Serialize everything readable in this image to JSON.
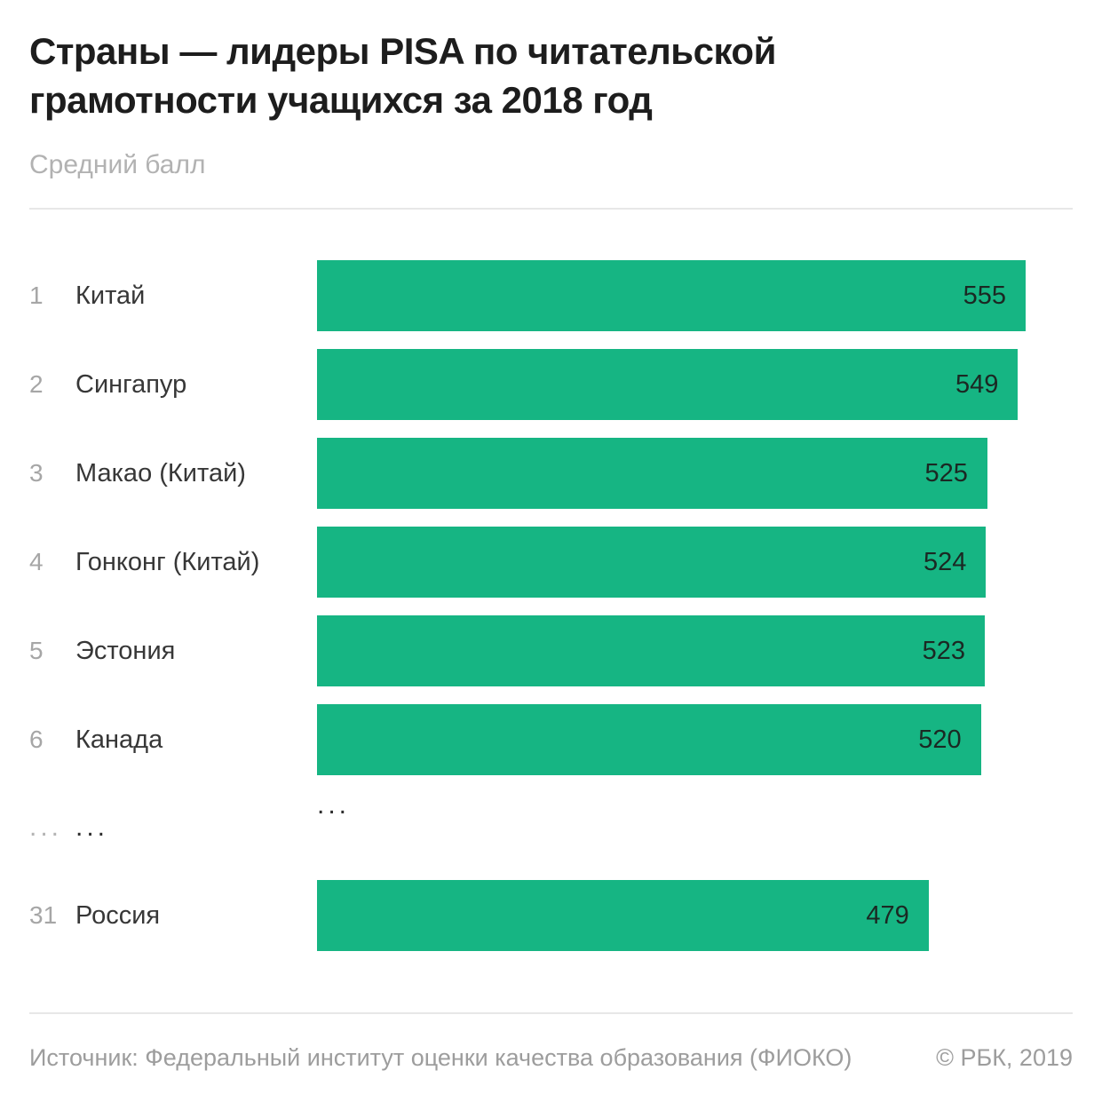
{
  "header": {
    "title": "Страны — лидеры PISA по читательской грамотности учащихся за 2018 год",
    "subtitle": "Средний балл"
  },
  "chart_data": {
    "type": "bar",
    "orientation": "horizontal",
    "title": "Страны — лидеры PISA по читательской грамотности учащихся за 2018 год",
    "value_axis_label": "Средний балл",
    "xlim": [
      0,
      555
    ],
    "grid": false,
    "legend": false,
    "rows": [
      {
        "rank": "1",
        "country": "Китай",
        "value": 555
      },
      {
        "rank": "2",
        "country": "Сингапур",
        "value": 549
      },
      {
        "rank": "3",
        "country": "Макао (Китай)",
        "value": 525
      },
      {
        "rank": "4",
        "country": "Гонконг (Китай)",
        "value": 524
      },
      {
        "rank": "5",
        "country": "Эстония",
        "value": 523
      },
      {
        "rank": "6",
        "country": "Канада",
        "value": 520
      },
      {
        "rank": "31",
        "country": "Россия",
        "value": 479
      }
    ],
    "ellipsis_row": {
      "rank": "...",
      "country": "...",
      "bar": "..."
    },
    "ellipsis_position": "between ranks 6 and 31"
  },
  "footer": {
    "source": "Источник: Федеральный институт оценки качества образования (ФИОКО)",
    "copyright": "© РБК, 2019"
  },
  "colors": {
    "bar": "#16b583",
    "title_text": "#1d1d1d",
    "subtitle_text": "#b2b2b2",
    "rank_text": "#a6a6a6",
    "country_text": "#373737",
    "value_text": "#1b2823",
    "divider": "#e7e7e7",
    "footer_text": "#9d9d9d",
    "background": "#ffffff"
  }
}
